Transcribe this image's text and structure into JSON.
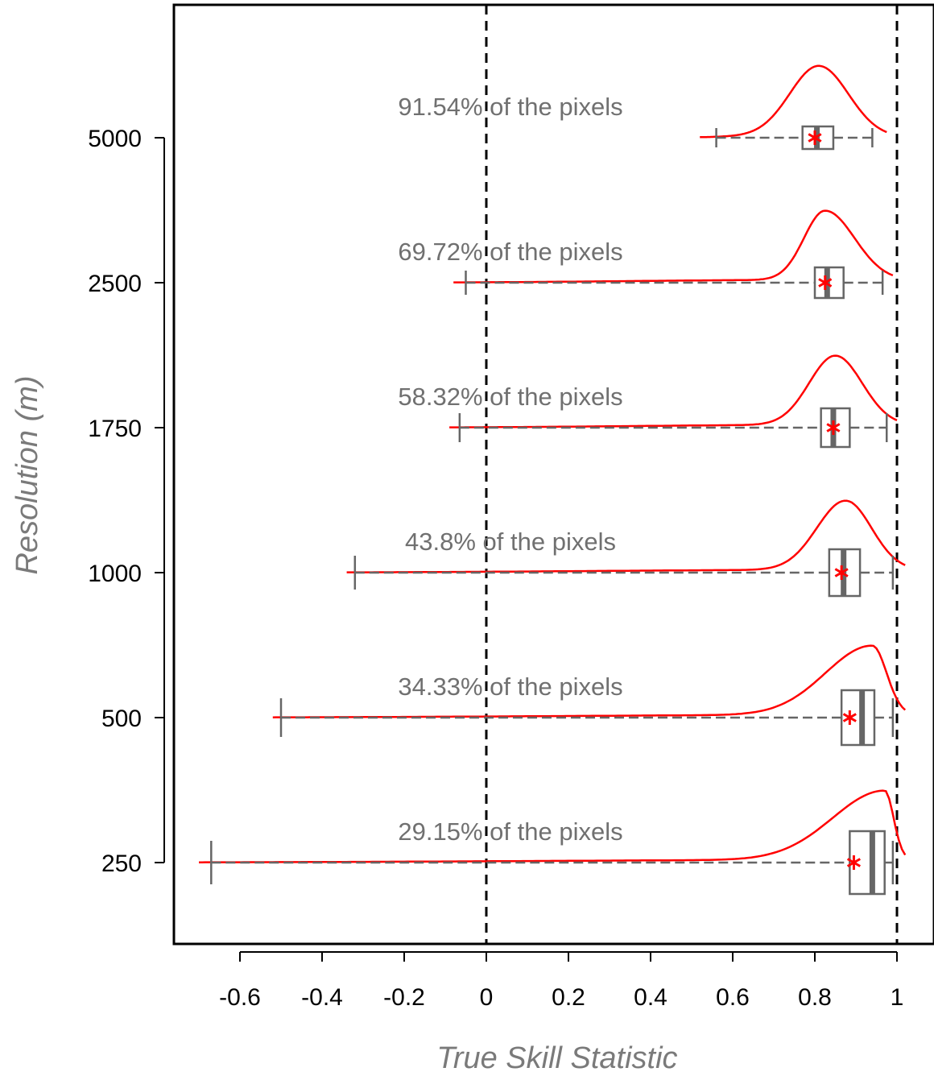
{
  "chart_data": {
    "type": "violin-boxplot",
    "xlabel": "True Skill Statistic",
    "ylabel": "Resolution (m)",
    "xlim": [
      -0.76,
      1.1
    ],
    "x_ticks": [
      "-0.6",
      "-0.4",
      "-0.2",
      "0",
      "0.2",
      "0.4",
      "0.6",
      "0.8",
      "1"
    ],
    "x_tick_values": [
      -0.6,
      -0.4,
      -0.2,
      0,
      0.2,
      0.4,
      0.6,
      0.8,
      1
    ],
    "reference_lines_x": [
      0,
      1
    ],
    "grid": false,
    "colors": {
      "density": "#ff0000",
      "box": "#666666",
      "mean_marker": "#ff0000",
      "reference": "#000000"
    },
    "groups": [
      {
        "resolution": "5000",
        "annotation": "91.54% of the pixels",
        "whisker_low": 0.56,
        "q1": 0.77,
        "median": 0.805,
        "q3": 0.845,
        "whisker_high": 0.94,
        "mean": 0.8,
        "density_range": [
          0.52,
          0.975
        ],
        "density_peak": 0.81
      },
      {
        "resolution": "2500",
        "annotation": "69.72% of the pixels",
        "whisker_low": -0.05,
        "q1": 0.8,
        "median": 0.83,
        "q3": 0.87,
        "whisker_high": 0.965,
        "mean": 0.825,
        "density_range": [
          -0.08,
          0.99
        ],
        "density_peak": 0.825
      },
      {
        "resolution": "1750",
        "annotation": "58.32% of the pixels",
        "whisker_low": -0.065,
        "q1": 0.815,
        "median": 0.845,
        "q3": 0.885,
        "whisker_high": 0.975,
        "mean": 0.845,
        "density_range": [
          -0.09,
          1.0
        ],
        "density_peak": 0.85
      },
      {
        "resolution": "1000",
        "annotation": "43.8% of the pixels",
        "whisker_low": -0.32,
        "q1": 0.835,
        "median": 0.87,
        "q3": 0.91,
        "whisker_high": 0.99,
        "mean": 0.865,
        "density_range": [
          -0.34,
          1.02
        ],
        "density_peak": 0.875
      },
      {
        "resolution": "500",
        "annotation": "34.33% of the pixels",
        "whisker_low": -0.5,
        "q1": 0.865,
        "median": 0.915,
        "q3": 0.945,
        "whisker_high": 0.99,
        "mean": 0.885,
        "density_range": [
          -0.52,
          1.02
        ],
        "density_peak": 0.94
      },
      {
        "resolution": "250",
        "annotation": "29.15% of the pixels",
        "whisker_low": -0.67,
        "q1": 0.885,
        "median": 0.94,
        "q3": 0.97,
        "whisker_high": 0.99,
        "mean": 0.895,
        "density_range": [
          -0.7,
          1.02
        ],
        "density_peak": 0.97
      }
    ]
  }
}
